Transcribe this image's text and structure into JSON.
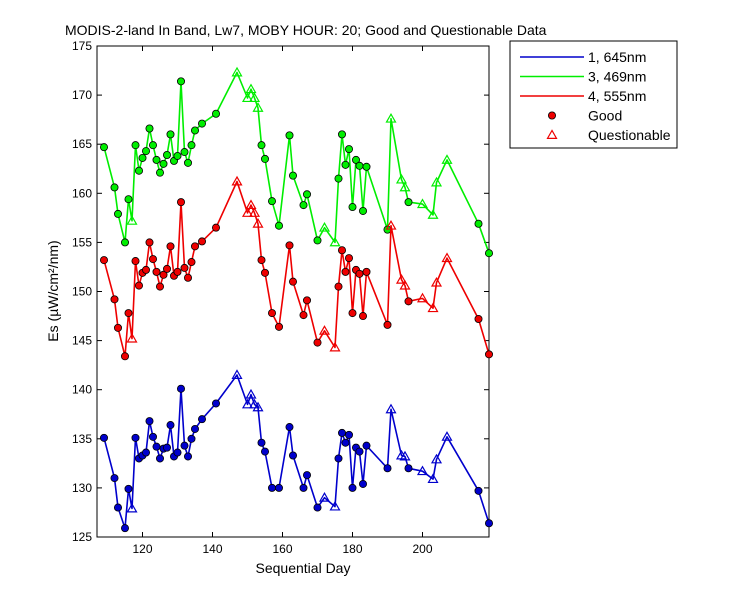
{
  "chart_data": {
    "type": "line",
    "title": "MODIS-2-land In Band,  Lw7, MOBY HOUR: 20;  Good and Questionable Data",
    "xlabel": "Sequential Day",
    "ylabel": "Es (µW/cm²/nm)",
    "xlim": [
      107,
      219
    ],
    "ylim": [
      125,
      175
    ],
    "xticks": [
      120,
      140,
      160,
      180,
      200
    ],
    "yticks": [
      125,
      130,
      135,
      140,
      145,
      150,
      155,
      160,
      165,
      170,
      175
    ],
    "legend_position": "outside-top-right",
    "grid": false,
    "series": [
      {
        "name": "1, 645nm",
        "color": "#0000cc",
        "points": [
          {
            "x": 109,
            "y": 135.1,
            "q": false
          },
          {
            "x": 112,
            "y": 131.0,
            "q": false
          },
          {
            "x": 113,
            "y": 128.0,
            "q": false
          },
          {
            "x": 115,
            "y": 125.9,
            "q": false
          },
          {
            "x": 116,
            "y": 129.9,
            "q": false
          },
          {
            "x": 117,
            "y": 127.9,
            "q": true
          },
          {
            "x": 118,
            "y": 135.1,
            "q": false
          },
          {
            "x": 119,
            "y": 133.0,
            "q": false
          },
          {
            "x": 120,
            "y": 133.3,
            "q": false
          },
          {
            "x": 121,
            "y": 133.6,
            "q": false
          },
          {
            "x": 122,
            "y": 136.8,
            "q": false
          },
          {
            "x": 123,
            "y": 135.2,
            "q": false
          },
          {
            "x": 124,
            "y": 134.2,
            "q": false
          },
          {
            "x": 125,
            "y": 133.0,
            "q": false
          },
          {
            "x": 126,
            "y": 134.0,
            "q": false
          },
          {
            "x": 127,
            "y": 134.1,
            "q": false
          },
          {
            "x": 128,
            "y": 136.4,
            "q": false
          },
          {
            "x": 129,
            "y": 133.2,
            "q": false
          },
          {
            "x": 130,
            "y": 133.6,
            "q": false
          },
          {
            "x": 131,
            "y": 140.1,
            "q": false
          },
          {
            "x": 132,
            "y": 134.3,
            "q": false
          },
          {
            "x": 133,
            "y": 133.2,
            "q": false
          },
          {
            "x": 134,
            "y": 135.0,
            "q": false
          },
          {
            "x": 135,
            "y": 136.0,
            "q": false
          },
          {
            "x": 137,
            "y": 137.0,
            "q": false
          },
          {
            "x": 141,
            "y": 138.6,
            "q": false
          },
          {
            "x": 147,
            "y": 141.5,
            "q": true
          },
          {
            "x": 150,
            "y": 138.5,
            "q": true
          },
          {
            "x": 151,
            "y": 139.5,
            "q": true
          },
          {
            "x": 152,
            "y": 138.5,
            "q": true
          },
          {
            "x": 153,
            "y": 138.2,
            "q": true
          },
          {
            "x": 154,
            "y": 134.6,
            "q": false
          },
          {
            "x": 155,
            "y": 133.7,
            "q": false
          },
          {
            "x": 157,
            "y": 130.0,
            "q": false
          },
          {
            "x": 159,
            "y": 130.0,
            "q": false
          },
          {
            "x": 162,
            "y": 136.2,
            "q": false
          },
          {
            "x": 163,
            "y": 133.3,
            "q": false
          },
          {
            "x": 166,
            "y": 130.0,
            "q": false
          },
          {
            "x": 167,
            "y": 131.3,
            "q": false
          },
          {
            "x": 170,
            "y": 128.0,
            "q": false
          },
          {
            "x": 172,
            "y": 129.0,
            "q": true
          },
          {
            "x": 175,
            "y": 128.1,
            "q": true
          },
          {
            "x": 176,
            "y": 133.0,
            "q": false
          },
          {
            "x": 177,
            "y": 135.6,
            "q": false
          },
          {
            "x": 178,
            "y": 134.6,
            "q": false
          },
          {
            "x": 179,
            "y": 135.4,
            "q": false
          },
          {
            "x": 180,
            "y": 130.0,
            "q": false
          },
          {
            "x": 181,
            "y": 134.1,
            "q": false
          },
          {
            "x": 182,
            "y": 133.7,
            "q": false
          },
          {
            "x": 183,
            "y": 130.4,
            "q": false
          },
          {
            "x": 184,
            "y": 134.3,
            "q": false
          },
          {
            "x": 190,
            "y": 132.0,
            "q": false
          },
          {
            "x": 191,
            "y": 138.0,
            "q": true
          },
          {
            "x": 194,
            "y": 133.3,
            "q": true
          },
          {
            "x": 195,
            "y": 133.2,
            "q": true
          },
          {
            "x": 196,
            "y": 132.0,
            "q": false
          },
          {
            "x": 200,
            "y": 131.7,
            "q": true
          },
          {
            "x": 203,
            "y": 130.9,
            "q": true
          },
          {
            "x": 204,
            "y": 132.9,
            "q": true
          },
          {
            "x": 207,
            "y": 135.2,
            "q": true
          },
          {
            "x": 216,
            "y": 129.7,
            "q": false
          },
          {
            "x": 219,
            "y": 126.4,
            "q": false
          }
        ]
      },
      {
        "name": "3, 469nm",
        "color": "#00ee00",
        "points": [
          {
            "x": 109,
            "y": 164.7,
            "q": false
          },
          {
            "x": 112,
            "y": 160.6,
            "q": false
          },
          {
            "x": 113,
            "y": 157.9,
            "q": false
          },
          {
            "x": 115,
            "y": 155.0,
            "q": false
          },
          {
            "x": 116,
            "y": 159.4,
            "q": false
          },
          {
            "x": 117,
            "y": 157.2,
            "q": true
          },
          {
            "x": 118,
            "y": 164.9,
            "q": false
          },
          {
            "x": 119,
            "y": 162.3,
            "q": false
          },
          {
            "x": 120,
            "y": 163.6,
            "q": false
          },
          {
            "x": 121,
            "y": 164.3,
            "q": false
          },
          {
            "x": 122,
            "y": 166.6,
            "q": false
          },
          {
            "x": 123,
            "y": 164.9,
            "q": false
          },
          {
            "x": 124,
            "y": 163.4,
            "q": false
          },
          {
            "x": 125,
            "y": 162.1,
            "q": false
          },
          {
            "x": 126,
            "y": 163.0,
            "q": false
          },
          {
            "x": 127,
            "y": 163.9,
            "q": false
          },
          {
            "x": 128,
            "y": 166.0,
            "q": false
          },
          {
            "x": 129,
            "y": 163.3,
            "q": false
          },
          {
            "x": 130,
            "y": 163.8,
            "q": false
          },
          {
            "x": 131,
            "y": 171.4,
            "q": false
          },
          {
            "x": 132,
            "y": 164.2,
            "q": false
          },
          {
            "x": 133,
            "y": 163.1,
            "q": false
          },
          {
            "x": 134,
            "y": 164.9,
            "q": false
          },
          {
            "x": 135,
            "y": 166.4,
            "q": false
          },
          {
            "x": 137,
            "y": 167.1,
            "q": false
          },
          {
            "x": 141,
            "y": 168.1,
            "q": false
          },
          {
            "x": 147,
            "y": 172.3,
            "q": true
          },
          {
            "x": 150,
            "y": 169.7,
            "q": true
          },
          {
            "x": 151,
            "y": 170.6,
            "q": true
          },
          {
            "x": 152,
            "y": 169.7,
            "q": true
          },
          {
            "x": 153,
            "y": 168.7,
            "q": true
          },
          {
            "x": 154,
            "y": 164.9,
            "q": false
          },
          {
            "x": 155,
            "y": 163.5,
            "q": false
          },
          {
            "x": 157,
            "y": 159.2,
            "q": false
          },
          {
            "x": 159,
            "y": 156.7,
            "q": false
          },
          {
            "x": 162,
            "y": 165.9,
            "q": false
          },
          {
            "x": 163,
            "y": 161.8,
            "q": false
          },
          {
            "x": 166,
            "y": 158.8,
            "q": false
          },
          {
            "x": 167,
            "y": 159.9,
            "q": false
          },
          {
            "x": 170,
            "y": 155.2,
            "q": false
          },
          {
            "x": 172,
            "y": 156.5,
            "q": true
          },
          {
            "x": 175,
            "y": 155.0,
            "q": true
          },
          {
            "x": 176,
            "y": 161.5,
            "q": false
          },
          {
            "x": 177,
            "y": 166.0,
            "q": false
          },
          {
            "x": 178,
            "y": 162.9,
            "q": false
          },
          {
            "x": 179,
            "y": 164.5,
            "q": false
          },
          {
            "x": 180,
            "y": 158.6,
            "q": false
          },
          {
            "x": 181,
            "y": 163.4,
            "q": false
          },
          {
            "x": 182,
            "y": 162.8,
            "q": false
          },
          {
            "x": 183,
            "y": 158.2,
            "q": false
          },
          {
            "x": 184,
            "y": 162.7,
            "q": false
          },
          {
            "x": 190,
            "y": 156.3,
            "q": false
          },
          {
            "x": 191,
            "y": 167.6,
            "q": true
          },
          {
            "x": 194,
            "y": 161.4,
            "q": true
          },
          {
            "x": 195,
            "y": 160.6,
            "q": true
          },
          {
            "x": 196,
            "y": 159.1,
            "q": false
          },
          {
            "x": 200,
            "y": 158.9,
            "q": true
          },
          {
            "x": 203,
            "y": 157.8,
            "q": true
          },
          {
            "x": 204,
            "y": 161.1,
            "q": true
          },
          {
            "x": 207,
            "y": 163.4,
            "q": true
          },
          {
            "x": 216,
            "y": 156.9,
            "q": false
          },
          {
            "x": 219,
            "y": 153.9,
            "q": false
          }
        ]
      },
      {
        "name": "4, 555nm",
        "color": "#ee0000",
        "points": [
          {
            "x": 109,
            "y": 153.2,
            "q": false
          },
          {
            "x": 112,
            "y": 149.2,
            "q": false
          },
          {
            "x": 113,
            "y": 146.3,
            "q": false
          },
          {
            "x": 115,
            "y": 143.4,
            "q": false
          },
          {
            "x": 116,
            "y": 147.8,
            "q": false
          },
          {
            "x": 117,
            "y": 145.2,
            "q": true
          },
          {
            "x": 118,
            "y": 153.1,
            "q": false
          },
          {
            "x": 119,
            "y": 150.6,
            "q": false
          },
          {
            "x": 120,
            "y": 151.9,
            "q": false
          },
          {
            "x": 121,
            "y": 152.2,
            "q": false
          },
          {
            "x": 122,
            "y": 155.0,
            "q": false
          },
          {
            "x": 123,
            "y": 153.3,
            "q": false
          },
          {
            "x": 124,
            "y": 152.0,
            "q": false
          },
          {
            "x": 125,
            "y": 150.5,
            "q": false
          },
          {
            "x": 126,
            "y": 151.7,
            "q": false
          },
          {
            "x": 127,
            "y": 152.3,
            "q": false
          },
          {
            "x": 128,
            "y": 154.6,
            "q": false
          },
          {
            "x": 129,
            "y": 151.6,
            "q": false
          },
          {
            "x": 130,
            "y": 152.0,
            "q": false
          },
          {
            "x": 131,
            "y": 159.1,
            "q": false
          },
          {
            "x": 132,
            "y": 152.4,
            "q": false
          },
          {
            "x": 133,
            "y": 151.4,
            "q": false
          },
          {
            "x": 134,
            "y": 153.0,
            "q": false
          },
          {
            "x": 135,
            "y": 154.6,
            "q": false
          },
          {
            "x": 137,
            "y": 155.1,
            "q": false
          },
          {
            "x": 141,
            "y": 156.5,
            "q": false
          },
          {
            "x": 147,
            "y": 161.2,
            "q": true
          },
          {
            "x": 150,
            "y": 158.0,
            "q": true
          },
          {
            "x": 151,
            "y": 158.8,
            "q": true
          },
          {
            "x": 152,
            "y": 158.0,
            "q": true
          },
          {
            "x": 153,
            "y": 156.9,
            "q": true
          },
          {
            "x": 154,
            "y": 153.2,
            "q": false
          },
          {
            "x": 155,
            "y": 151.9,
            "q": false
          },
          {
            "x": 157,
            "y": 147.8,
            "q": false
          },
          {
            "x": 159,
            "y": 146.4,
            "q": false
          },
          {
            "x": 162,
            "y": 154.7,
            "q": false
          },
          {
            "x": 163,
            "y": 151.0,
            "q": false
          },
          {
            "x": 166,
            "y": 147.6,
            "q": false
          },
          {
            "x": 167,
            "y": 149.1,
            "q": false
          },
          {
            "x": 170,
            "y": 144.8,
            "q": false
          },
          {
            "x": 172,
            "y": 146.0,
            "q": true
          },
          {
            "x": 175,
            "y": 144.3,
            "q": true
          },
          {
            "x": 176,
            "y": 150.5,
            "q": false
          },
          {
            "x": 177,
            "y": 154.2,
            "q": false
          },
          {
            "x": 178,
            "y": 152.0,
            "q": false
          },
          {
            "x": 179,
            "y": 153.4,
            "q": false
          },
          {
            "x": 180,
            "y": 147.8,
            "q": false
          },
          {
            "x": 181,
            "y": 152.2,
            "q": false
          },
          {
            "x": 182,
            "y": 151.8,
            "q": false
          },
          {
            "x": 183,
            "y": 147.5,
            "q": false
          },
          {
            "x": 184,
            "y": 152.0,
            "q": false
          },
          {
            "x": 190,
            "y": 146.6,
            "q": false
          },
          {
            "x": 191,
            "y": 156.7,
            "q": true
          },
          {
            "x": 194,
            "y": 151.2,
            "q": true
          },
          {
            "x": 195,
            "y": 150.6,
            "q": true
          },
          {
            "x": 196,
            "y": 149.0,
            "q": false
          },
          {
            "x": 200,
            "y": 149.3,
            "q": true
          },
          {
            "x": 203,
            "y": 148.3,
            "q": true
          },
          {
            "x": 204,
            "y": 150.9,
            "q": true
          },
          {
            "x": 207,
            "y": 153.4,
            "q": true
          },
          {
            "x": 216,
            "y": 147.2,
            "q": false
          },
          {
            "x": 219,
            "y": 143.6,
            "q": false
          }
        ]
      }
    ],
    "legend": {
      "entries": [
        {
          "label": "1, 645nm",
          "kind": "line",
          "color": "#0000cc"
        },
        {
          "label": "3, 469nm",
          "kind": "line",
          "color": "#00ee00"
        },
        {
          "label": "4, 555nm",
          "kind": "line",
          "color": "#ee0000"
        },
        {
          "label": "Good",
          "kind": "dot",
          "color": "#ee0000"
        },
        {
          "label": "Questionable",
          "kind": "triangle",
          "color": "#ee0000"
        }
      ]
    }
  }
}
